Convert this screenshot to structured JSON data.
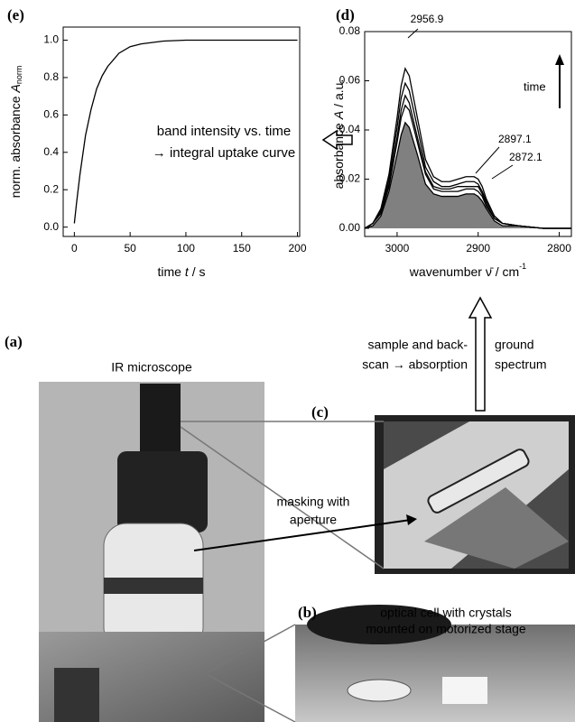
{
  "chart_data": [
    {
      "type": "line",
      "panel": "(e)",
      "y_label": "norm. absorbance",
      "y_label_var": "A",
      "y_label_sub": "norm",
      "x_label": "time",
      "x_label_var": "t",
      "x_label_unit": "/ s",
      "x": [
        0,
        2,
        5,
        10,
        15,
        20,
        25,
        30,
        40,
        50,
        60,
        80,
        100,
        125,
        150,
        175,
        200
      ],
      "series": [
        {
          "color": "#000000",
          "values": [
            0.02,
            0.13,
            0.28,
            0.49,
            0.63,
            0.74,
            0.81,
            0.86,
            0.93,
            0.965,
            0.98,
            0.995,
            1.0,
            1.0,
            1.0,
            1.0,
            1.0
          ]
        }
      ],
      "xlim": [
        -10,
        202
      ],
      "ylim": [
        -0.05,
        1.07
      ],
      "xticks": [
        0,
        50,
        100,
        150,
        200
      ],
      "yticks": [
        {
          "value": 0,
          "label": "0.0"
        },
        {
          "value": 0.2,
          "label": "0.2"
        },
        {
          "value": 0.4,
          "label": "0.4"
        },
        {
          "value": 0.6,
          "label": "0.6"
        },
        {
          "value": 0.8,
          "label": "0.8"
        },
        {
          "value": 1.0,
          "label": "1.0"
        }
      ]
    },
    {
      "type": "line",
      "panel": "(d)",
      "y_label": "absorbance",
      "y_label_var": "A",
      "y_label_unit": "/ a.u.",
      "x_label": "wavenumber ν̄ / cm",
      "x_label_sup": "-1",
      "annotations": [
        "2956.9",
        "2897.1",
        "2872.1",
        "time"
      ],
      "x": [
        3040,
        3030,
        3020,
        3010,
        3000,
        2995,
        2990,
        2985,
        2975,
        2965,
        2955,
        2945,
        2935,
        2925,
        2915,
        2905,
        2900,
        2895,
        2890,
        2880,
        2870,
        2850,
        2820,
        2785
      ],
      "series": [
        {
          "color": "#000000",
          "fill": "#808080",
          "values": [
            0,
            0.001,
            0.005,
            0.015,
            0.03,
            0.038,
            0.043,
            0.041,
            0.03,
            0.018,
            0.014,
            0.013,
            0.013,
            0.013,
            0.014,
            0.014,
            0.013,
            0.011,
            0.008,
            0.003,
            0.001,
            0.001,
            0,
            0
          ]
        },
        {
          "color": "#000000",
          "values": [
            0,
            0.002,
            0.006,
            0.017,
            0.035,
            0.045,
            0.05,
            0.048,
            0.035,
            0.022,
            0.016,
            0.015,
            0.015,
            0.015,
            0.016,
            0.016,
            0.015,
            0.013,
            0.009,
            0.004,
            0.002,
            0.001,
            0,
            0
          ]
        },
        {
          "color": "#000000",
          "values": [
            0,
            0.002,
            0.007,
            0.018,
            0.037,
            0.048,
            0.054,
            0.051,
            0.037,
            0.023,
            0.017,
            0.016,
            0.016,
            0.017,
            0.017,
            0.017,
            0.017,
            0.014,
            0.01,
            0.004,
            0.002,
            0.001,
            0,
            0
          ]
        },
        {
          "color": "#000000",
          "values": [
            0,
            0.002,
            0.007,
            0.02,
            0.041,
            0.053,
            0.059,
            0.056,
            0.041,
            0.025,
            0.019,
            0.017,
            0.017,
            0.018,
            0.019,
            0.019,
            0.018,
            0.015,
            0.011,
            0.005,
            0.002,
            0.001,
            0,
            0
          ]
        },
        {
          "color": "#000000",
          "values": [
            0,
            0.002,
            0.008,
            0.022,
            0.045,
            0.058,
            0.065,
            0.062,
            0.045,
            0.028,
            0.021,
            0.019,
            0.019,
            0.02,
            0.021,
            0.021,
            0.02,
            0.017,
            0.012,
            0.005,
            0.002,
            0.001,
            0,
            0
          ]
        }
      ],
      "xlim": [
        3040,
        2785
      ],
      "ylim": [
        -0.0033,
        0.08
      ],
      "xticks": [
        3000,
        2900,
        2800
      ],
      "yticks": [
        {
          "value": 0,
          "label": "0.00"
        },
        {
          "value": 0.02,
          "label": "0.02"
        },
        {
          "value": 0.04,
          "label": "0.04"
        },
        {
          "value": 0.06,
          "label": "0.06"
        },
        {
          "value": 0.08,
          "label": "0.08"
        }
      ]
    }
  ],
  "figure": {
    "arrow_text": [
      "band intensity vs. time",
      "→ integral uptake curve"
    ],
    "panel_a": "(a)",
    "panel_a_title": "IR microscope",
    "panel_b": "(b)",
    "panel_b_title": [
      "optical cell with crystals",
      "mounted on motorized stage"
    ],
    "panel_c": "(c)",
    "scan_text": [
      "sample and back-",
      "scan → absorption",
      "ground",
      "spectrum"
    ],
    "mask_text": [
      "masking with",
      "aperture"
    ]
  }
}
